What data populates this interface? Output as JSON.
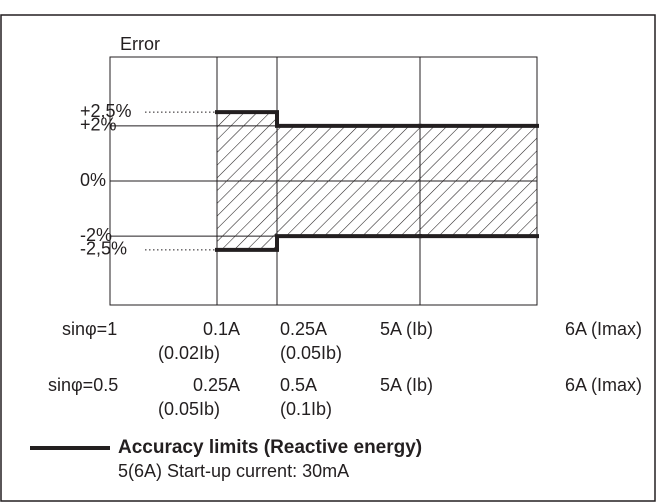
{
  "chart_data": {
    "type": "step",
    "y_label": "Error",
    "ylim": [
      -4.5,
      4.5
    ],
    "yticks": [
      {
        "value": 2.5,
        "label": "+2,5%",
        "line": "dotted"
      },
      {
        "value": 2,
        "label": "+2%",
        "line": "solid"
      },
      {
        "value": 0,
        "label": "0%",
        "line": "solid"
      },
      {
        "value": -2,
        "label": "-2%",
        "line": "solid"
      },
      {
        "value": -2.5,
        "label": "-2,5%",
        "line": "dotted"
      }
    ],
    "x_label_rows": [
      {
        "name": "sinφ=1",
        "labels": [
          "0.1A",
          "0.25A",
          "5A (Ib)",
          "6A (Imax)"
        ],
        "sublabels": [
          "(0.02Ib)",
          "(0.05Ib)",
          null,
          null
        ]
      },
      {
        "name": "sinφ=0.5",
        "labels": [
          "0.25A",
          "0.5A",
          "5A (Ib)",
          "6A (Imax)"
        ],
        "sublabels": [
          "(0.05Ib)",
          "(0.1Ib)",
          null,
          null
        ]
      }
    ],
    "series": [
      {
        "name": "Accuracy limits (Reactive energy)",
        "color": "#231f20",
        "values": [
          2.5,
          2,
          2
        ],
        "lower": [
          -2.5,
          -2,
          -2
        ]
      }
    ],
    "hatch": true,
    "footnote": "5(6A)  Start-up current: 30mA"
  }
}
